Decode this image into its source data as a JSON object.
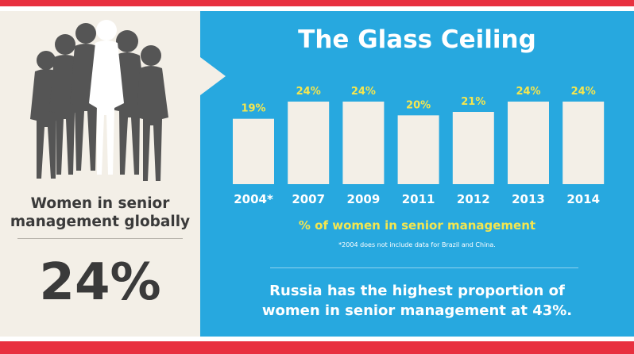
{
  "colors": {
    "red": "#e8303f",
    "blue": "#27a8df",
    "cream": "#f3efe7",
    "yellow": "#f4e64f",
    "dark": "#3a3a3a",
    "silhouette": "#555555"
  },
  "left_panel": {
    "caption_line1": "Women in senior",
    "caption_line2": "management globally",
    "value": "24%"
  },
  "chart_data": {
    "type": "bar",
    "title": "The Glass Ceiling",
    "categories": [
      "2004*",
      "2007",
      "2009",
      "2011",
      "2012",
      "2013",
      "2014"
    ],
    "values": [
      19,
      24,
      24,
      20,
      21,
      24,
      24
    ],
    "value_labels": [
      "19%",
      "24%",
      "24%",
      "20%",
      "21%",
      "24%",
      "24%"
    ],
    "xlabel": "% of women in senior management",
    "ylabel": "",
    "ylim": [
      0,
      24
    ],
    "grid": false,
    "legend": "none",
    "footnote": "*2004 does not include data for Brazil and China."
  },
  "facts": {
    "line1": "Russia has the highest proportion of",
    "line2": "women in senior management at 43%."
  }
}
